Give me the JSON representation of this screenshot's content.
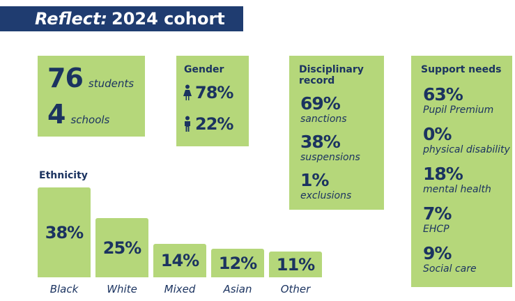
{
  "title": {
    "emphasis": "Reflect:",
    "rest": "2024 cohort"
  },
  "counts": {
    "students": {
      "value": "76",
      "label": "students"
    },
    "schools": {
      "value": "4",
      "label": "schools"
    }
  },
  "gender": {
    "heading": "Gender",
    "items": [
      {
        "icon": "female-figure-icon",
        "value": "78%"
      },
      {
        "icon": "male-figure-icon",
        "value": "22%"
      }
    ]
  },
  "disciplinary": {
    "heading": "Disciplinary record",
    "items": [
      {
        "value": "69%",
        "label": "sanctions"
      },
      {
        "value": "38%",
        "label": "suspensions"
      },
      {
        "value": "1%",
        "label": "exclusions"
      }
    ]
  },
  "support": {
    "heading": "Support needs",
    "items": [
      {
        "value": "63%",
        "label": "Pupil Premium"
      },
      {
        "value": "0%",
        "label": "physical disability"
      },
      {
        "value": "18%",
        "label": "mental health"
      },
      {
        "value": "7%",
        "label": "EHCP"
      },
      {
        "value": "9%",
        "label": "Social care"
      }
    ]
  },
  "colors": {
    "panel": "#b5d77a",
    "navy": "#1b3360",
    "title_bar": "#1f3c70"
  },
  "chart_data": {
    "type": "bar",
    "title": "Ethnicity",
    "categories": [
      "Black",
      "White",
      "Mixed",
      "Asian",
      "Other"
    ],
    "values": [
      38,
      25,
      14,
      12,
      11
    ],
    "value_labels": [
      "38%",
      "25%",
      "14%",
      "12%",
      "11%"
    ],
    "ylim": [
      0,
      38
    ],
    "grid": false
  }
}
